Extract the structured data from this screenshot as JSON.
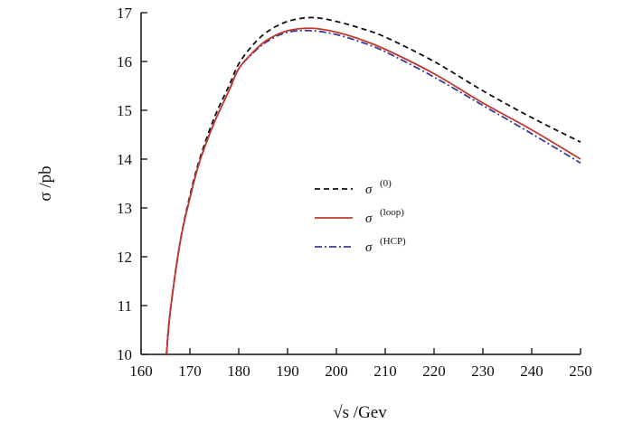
{
  "chart_data": {
    "type": "line",
    "title": "",
    "xlabel": "√s /Gev",
    "ylabel": "σ /pb",
    "xlim": [
      160,
      250
    ],
    "ylim": [
      10,
      17
    ],
    "xticks": [
      "160",
      "170",
      "180",
      "190",
      "200",
      "210",
      "220",
      "230",
      "240",
      "250"
    ],
    "yticks": [
      "10",
      "11",
      "12",
      "13",
      "14",
      "15",
      "16",
      "17"
    ],
    "grid": false,
    "legend_position": "center-right",
    "series": [
      {
        "name": "σ (0)",
        "name_base": "σ",
        "name_sup": "(0)",
        "color": "#111111",
        "dash": "dashed",
        "x": [
          165.2,
          166,
          168,
          170,
          172,
          175,
          178,
          180,
          183,
          186,
          190,
          195,
          200,
          205,
          210,
          220,
          230,
          240,
          250
        ],
        "y": [
          10.0,
          10.9,
          12.3,
          13.25,
          14.0,
          14.85,
          15.5,
          15.95,
          16.35,
          16.62,
          16.82,
          16.9,
          16.82,
          16.68,
          16.5,
          16.0,
          15.4,
          14.85,
          14.35
        ]
      },
      {
        "name": "σ (loop)",
        "name_base": "σ",
        "name_sup": "(loop)",
        "color": "#c0392b",
        "dash": "solid",
        "x": [
          165.2,
          166,
          168,
          170,
          172,
          175,
          178,
          180,
          183,
          186,
          190,
          195,
          200,
          205,
          210,
          220,
          230,
          240,
          250
        ],
        "y": [
          10.0,
          10.9,
          12.3,
          13.2,
          13.95,
          14.75,
          15.4,
          15.85,
          16.2,
          16.45,
          16.63,
          16.68,
          16.6,
          16.45,
          16.25,
          15.75,
          15.15,
          14.6,
          14.0
        ]
      },
      {
        "name": "σ (HCP)",
        "name_base": "σ",
        "name_sup": "(HCP)",
        "color": "#3b3b9c",
        "dash": "dashdot",
        "x": [
          165.2,
          166,
          168,
          170,
          172,
          175,
          178,
          180,
          183,
          186,
          190,
          195,
          200,
          205,
          210,
          220,
          230,
          240,
          250
        ],
        "y": [
          10.0,
          10.9,
          12.3,
          13.2,
          13.95,
          14.75,
          15.4,
          15.85,
          16.18,
          16.42,
          16.6,
          16.63,
          16.55,
          16.4,
          16.2,
          15.68,
          15.1,
          14.52,
          13.92
        ]
      }
    ]
  }
}
